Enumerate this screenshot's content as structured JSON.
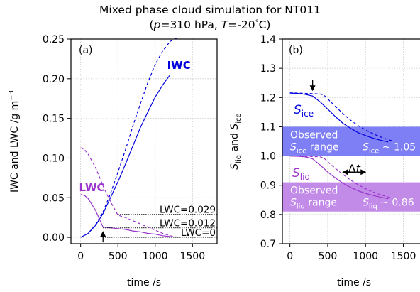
{
  "title_line1": "Mixed phase cloud simulation for NT011",
  "title_p_sym": "p",
  "title_p_rest": "=310 hPa, ",
  "title_t_sym": "T",
  "title_t_rest": "=-20",
  "title_t_unit": "C)",
  "title_open": "(",
  "title_deg": "°",
  "colors": {
    "ice": "#0000dd",
    "liq": "#9933cc",
    "ice_band": "#7f7ff5",
    "liq_band": "#c38be8",
    "grid": "#c8c8c8"
  },
  "chart_data": [
    {
      "panel_label": "(a)",
      "type": "line",
      "xlabel": "time /s",
      "ylabel": "IWC and LWC /g m",
      "ylabel_sup": "−3",
      "xlim": [
        -130,
        1830
      ],
      "ylim": [
        -0.008,
        0.25
      ],
      "x_ticks": [
        0,
        500,
        1000,
        1500
      ],
      "y_ticks": [
        0.0,
        0.05,
        0.1,
        0.15,
        0.2,
        0.25
      ],
      "y_tick_labels": [
        "0.00",
        "0.05",
        "0.10",
        "0.15",
        "0.20",
        "0.25"
      ],
      "grid": true,
      "series": [
        {
          "name": "IWC",
          "label_style": "ice",
          "dashed": false,
          "x": [
            0,
            100,
            200,
            300,
            400,
            500,
            600,
            700,
            800,
            900,
            1000,
            1100,
            1200
          ],
          "y": [
            0.0,
            0.005,
            0.015,
            0.03,
            0.05,
            0.07,
            0.092,
            0.115,
            0.138,
            0.158,
            0.177,
            0.192,
            0.205
          ]
        },
        {
          "name": "",
          "label_style": "ice",
          "dashed": true,
          "x": [
            0,
            100,
            200,
            300,
            400,
            500,
            600,
            700,
            800,
            900,
            1000,
            1100,
            1200,
            1300
          ],
          "y": [
            0.0,
            0.005,
            0.016,
            0.032,
            0.055,
            0.082,
            0.11,
            0.14,
            0.168,
            0.195,
            0.218,
            0.235,
            0.247,
            0.252
          ]
        },
        {
          "name": "LWC",
          "label_style": "liq",
          "dashed": false,
          "x": [
            0,
            50,
            100,
            200,
            300,
            400,
            500,
            600,
            700,
            800,
            900,
            1000,
            1100,
            1200
          ],
          "y": [
            0.054,
            0.053,
            0.049,
            0.034,
            0.013,
            0.012,
            0.011,
            0.01,
            0.008,
            0.007,
            0.005,
            0.004,
            0.002,
            0.001
          ]
        },
        {
          "name": "",
          "label_style": "liq",
          "dashed": true,
          "x": [
            0,
            50,
            100,
            200,
            300,
            400,
            500,
            600,
            700,
            800,
            900,
            1000,
            1100,
            1200,
            1300
          ],
          "y": [
            0.113,
            0.111,
            0.105,
            0.088,
            0.065,
            0.045,
            0.028,
            0.025,
            0.021,
            0.017,
            0.013,
            0.009,
            0.005,
            0.002,
            0.0
          ]
        }
      ],
      "reference_lines": [
        {
          "y": 0.029,
          "x_start": 500,
          "label": "LWC=0.029"
        },
        {
          "y": 0.012,
          "x_start": 300,
          "label": "LWC=0.012"
        },
        {
          "y": 0.0,
          "x_start": 300,
          "label": "LWC=0"
        }
      ],
      "arrow_x": 300
    },
    {
      "panel_label": "(b)",
      "type": "line",
      "xlabel": "time /s",
      "ylabel_S": "S",
      "ylabel_sub1": "liq",
      "ylabel_mid": " and ",
      "ylabel_sub2": "ice",
      "xlim": [
        -100,
        1720
      ],
      "ylim": [
        0.7,
        1.4
      ],
      "x_ticks": [
        0,
        500,
        1000,
        1500
      ],
      "y_ticks": [
        0.7,
        0.8,
        0.9,
        1.0,
        1.1,
        1.2,
        1.3,
        1.4
      ],
      "y_tick_labels": [
        "0.7",
        "0.8",
        "0.9",
        "1.0",
        "1.1",
        "1.2",
        "1.3",
        "1.4"
      ],
      "grid": true,
      "bands": [
        {
          "y0": 1.0,
          "y1": 1.1,
          "style": "ice",
          "text1": "Observed",
          "text2_S": "S",
          "text2_sub": "ice",
          "text2_rest": " range",
          "right_S": "S",
          "right_sub": "ice",
          "right_rest": " ~ 1.05"
        },
        {
          "y0": 0.81,
          "y1": 0.91,
          "style": "liq",
          "text1": "Observed",
          "text2_S": "S",
          "text2_sub": "liq",
          "text2_rest": " range",
          "right_S": "S",
          "right_sub": "liq",
          "right_rest": " ~ 0.86"
        }
      ],
      "series": [
        {
          "name": "Sice",
          "label_style": "ice",
          "dashed": false,
          "x": [
            0,
            100,
            200,
            250,
            300,
            400,
            500,
            600,
            700,
            800,
            900,
            1000,
            1100,
            1200,
            1300
          ],
          "y": [
            1.215,
            1.214,
            1.211,
            1.208,
            1.205,
            1.185,
            1.16,
            1.135,
            1.112,
            1.095,
            1.08,
            1.07,
            1.061,
            1.054,
            1.048
          ]
        },
        {
          "name": "",
          "label_style": "ice",
          "dashed": true,
          "x": [
            0,
            100,
            200,
            300,
            400,
            450,
            500,
            600,
            700,
            800,
            900,
            1000,
            1100,
            1200,
            1300,
            1350
          ],
          "y": [
            1.216,
            1.215,
            1.214,
            1.213,
            1.212,
            1.208,
            1.195,
            1.17,
            1.145,
            1.123,
            1.104,
            1.089,
            1.076,
            1.065,
            1.056,
            1.052
          ]
        },
        {
          "name": "Sliq",
          "label_style": "liq",
          "dashed": false,
          "x": [
            0,
            100,
            200,
            250,
            300,
            400,
            500,
            600,
            700,
            800,
            900,
            1000,
            1100,
            1200,
            1300
          ],
          "y": [
            1.0,
            0.999,
            0.997,
            0.994,
            0.99,
            0.969,
            0.945,
            0.925,
            0.907,
            0.893,
            0.881,
            0.872,
            0.865,
            0.859,
            0.854
          ]
        },
        {
          "name": "",
          "label_style": "liq",
          "dashed": true,
          "x": [
            0,
            100,
            200,
            300,
            400,
            450,
            500,
            600,
            700,
            800,
            900,
            1000,
            1100,
            1200,
            1300,
            1350
          ],
          "y": [
            1.0,
            1.0,
            0.999,
            0.998,
            0.997,
            0.993,
            0.98,
            0.958,
            0.937,
            0.918,
            0.902,
            0.888,
            0.877,
            0.867,
            0.86,
            0.857
          ]
        }
      ],
      "arrow_x": 300,
      "delta_t_label": "Δt",
      "delta_t_y": 0.945,
      "delta_t_x": [
        700,
        1000
      ]
    }
  ],
  "series_label_positions_note": ""
}
